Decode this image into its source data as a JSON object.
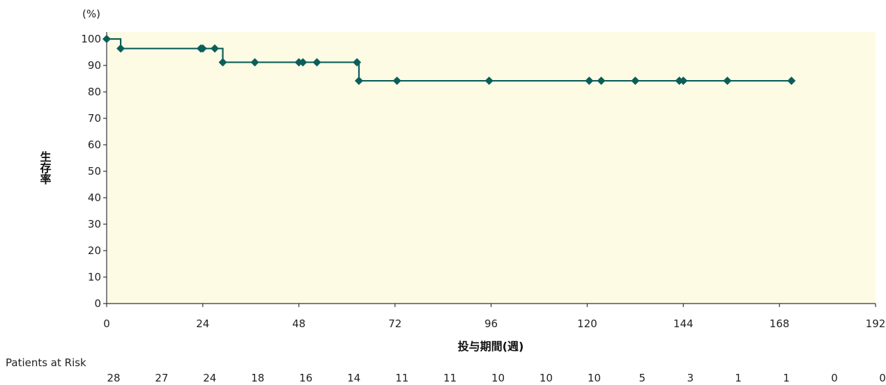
{
  "chart_data": {
    "type": "line",
    "subtype": "kaplan-meier",
    "y_unit_label": "(%)",
    "ylabel": "生存率",
    "xlabel": "投与期間(週)",
    "xlim": [
      0,
      192
    ],
    "ylim": [
      0,
      100
    ],
    "x_ticks": [
      0,
      24,
      48,
      72,
      96,
      120,
      144,
      168,
      192
    ],
    "y_ticks": [
      0,
      10,
      20,
      30,
      40,
      50,
      60,
      70,
      80,
      90,
      100
    ],
    "grid": false,
    "plot_background": "#fdfbe4",
    "line_color": "#0b5e5a",
    "series": [
      {
        "steps": [
          {
            "x": 0,
            "y": 100
          },
          {
            "x": 3.5,
            "y": 96.4
          },
          {
            "x": 29,
            "y": 91.2
          },
          {
            "x": 63,
            "y": 84.2
          },
          {
            "x": 171,
            "y": 84.2
          }
        ],
        "censored": [
          {
            "x": 0,
            "y": 100
          },
          {
            "x": 3.5,
            "y": 96.4
          },
          {
            "x": 23.5,
            "y": 96.4
          },
          {
            "x": 24,
            "y": 96.4
          },
          {
            "x": 27,
            "y": 96.4
          },
          {
            "x": 29,
            "y": 91.2
          },
          {
            "x": 37,
            "y": 91.2
          },
          {
            "x": 48,
            "y": 91.2
          },
          {
            "x": 49,
            "y": 91.2
          },
          {
            "x": 52.5,
            "y": 91.2
          },
          {
            "x": 62.5,
            "y": 91.2
          },
          {
            "x": 63,
            "y": 84.2
          },
          {
            "x": 72.5,
            "y": 84.2
          },
          {
            "x": 95.5,
            "y": 84.2
          },
          {
            "x": 120.5,
            "y": 84.2
          },
          {
            "x": 123.5,
            "y": 84.2
          },
          {
            "x": 132,
            "y": 84.2
          },
          {
            "x": 143,
            "y": 84.2
          },
          {
            "x": 144,
            "y": 84.2
          },
          {
            "x": 155,
            "y": 84.2
          },
          {
            "x": 171,
            "y": 84.2
          }
        ]
      }
    ],
    "risk_table": {
      "title": "Patients at Risk",
      "times": [
        0,
        12,
        24,
        36,
        48,
        60,
        72,
        84,
        96,
        108,
        120,
        132,
        144,
        156,
        168,
        180,
        192
      ],
      "values": [
        "28",
        "27",
        "24",
        "18",
        "16",
        "14",
        "11",
        "11",
        "10",
        "10",
        "10",
        "5",
        "3",
        "1",
        "1",
        "0",
        "0"
      ]
    }
  }
}
